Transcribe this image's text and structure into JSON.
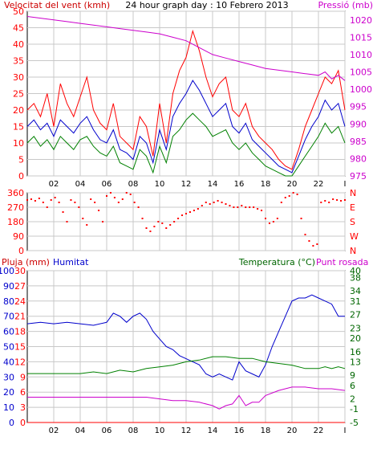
{
  "colors": {
    "frame": "#000000",
    "grid": "#c8c8c8",
    "red": "#ff0000",
    "blue": "#0000cc",
    "green": "#008000",
    "magenta": "#cc00cc",
    "dark_green": "#006600",
    "title_red": "#cc0000"
  },
  "chart_data": [
    {
      "type": "line",
      "title": "24 hour graph day : 10 Febrero 2013",
      "left_label": "Velocitat del vent (kmh)",
      "right_label": "Pressió (mb)",
      "x_ticks": [
        "02",
        "04",
        "06",
        "08",
        "10",
        "12",
        "14",
        "16",
        "18",
        "20",
        "22",
        "I"
      ],
      "y_left": [
        0,
        5,
        10,
        15,
        20,
        25,
        30,
        35,
        40,
        45,
        50
      ],
      "y_right": [
        975,
        980,
        985,
        990,
        995,
        1000,
        1005,
        1010,
        1015,
        1020
      ],
      "ylim_left": [
        0,
        50
      ],
      "ylim_right": [
        975,
        1022.5
      ],
      "grid": true,
      "series": [
        {
          "name": "gust",
          "color": "#ff0000",
          "x": [
            0,
            0.5,
            1,
            1.5,
            2,
            2.5,
            3,
            3.5,
            4,
            4.5,
            5,
            5.5,
            6,
            6.5,
            7,
            7.5,
            8,
            8.5,
            9,
            9.5,
            10,
            10.5,
            11,
            11.5,
            12,
            12.5,
            13,
            13.5,
            14,
            14.5,
            15,
            15.5,
            16,
            16.5,
            17,
            17.5,
            18,
            18.5,
            19,
            19.5,
            20,
            20.5,
            21,
            21.5,
            22,
            22.5,
            23,
            23.5,
            24
          ],
          "y": [
            20,
            22,
            18,
            25,
            15,
            28,
            22,
            18,
            24,
            30,
            20,
            16,
            14,
            22,
            12,
            10,
            8,
            18,
            15,
            6,
            22,
            10,
            25,
            32,
            36,
            44,
            38,
            30,
            24,
            28,
            30,
            20,
            18,
            22,
            15,
            12,
            10,
            8,
            5,
            3,
            2,
            8,
            15,
            20,
            25,
            30,
            28,
            32,
            20
          ]
        },
        {
          "name": "wind",
          "color": "#0000cc",
          "x": [
            0,
            0.5,
            1,
            1.5,
            2,
            2.5,
            3,
            3.5,
            4,
            4.5,
            5,
            5.5,
            6,
            6.5,
            7,
            7.5,
            8,
            8.5,
            9,
            9.5,
            10,
            10.5,
            11,
            11.5,
            12,
            12.5,
            13,
            13.5,
            14,
            14.5,
            15,
            15.5,
            16,
            16.5,
            17,
            17.5,
            18,
            18.5,
            19,
            19.5,
            20,
            20.5,
            21,
            21.5,
            22,
            22.5,
            23,
            23.5,
            24
          ],
          "y": [
            15,
            17,
            14,
            16,
            12,
            17,
            15,
            13,
            16,
            18,
            14,
            11,
            10,
            14,
            8,
            7,
            5,
            12,
            10,
            4,
            14,
            8,
            18,
            22,
            25,
            29,
            26,
            22,
            18,
            20,
            22,
            15,
            13,
            16,
            11,
            9,
            7,
            5,
            3,
            2,
            1,
            6,
            11,
            15,
            18,
            23,
            20,
            22,
            15
          ]
        },
        {
          "name": "wind_avg",
          "color": "#008000",
          "x": [
            0,
            0.5,
            1,
            1.5,
            2,
            2.5,
            3,
            3.5,
            4,
            4.5,
            5,
            5.5,
            6,
            6.5,
            7,
            7.5,
            8,
            8.5,
            9,
            9.5,
            10,
            10.5,
            11,
            11.5,
            12,
            12.5,
            13,
            13.5,
            14,
            14.5,
            15,
            15.5,
            16,
            16.5,
            17,
            17.5,
            18,
            18.5,
            19,
            19.5,
            20,
            20.5,
            21,
            21.5,
            22,
            22.5,
            23,
            23.5,
            24
          ],
          "y": [
            10,
            12,
            9,
            11,
            8,
            12,
            10,
            8,
            11,
            12,
            9,
            7,
            6,
            9,
            4,
            3,
            2,
            8,
            6,
            1,
            9,
            4,
            12,
            14,
            17,
            19,
            17,
            15,
            12,
            13,
            14,
            10,
            8,
            10,
            7,
            5,
            3,
            2,
            1,
            0,
            0,
            3,
            6,
            9,
            12,
            16,
            13,
            15,
            10
          ]
        },
        {
          "name": "pressure",
          "color": "#cc00cc",
          "axis": "right",
          "x": [
            0,
            1,
            2,
            3,
            4,
            5,
            6,
            7,
            8,
            9,
            10,
            11,
            12,
            13,
            14,
            15,
            16,
            17,
            18,
            19,
            20,
            21,
            22,
            22.5,
            23,
            23.5,
            24
          ],
          "y": [
            1021,
            1020.5,
            1020,
            1019.5,
            1019,
            1018.5,
            1018,
            1017.5,
            1017,
            1016.5,
            1016,
            1015,
            1014,
            1012,
            1010,
            1009,
            1008,
            1007,
            1006,
            1005.5,
            1005,
            1004.5,
            1004,
            1005,
            1003,
            1004,
            1002.5
          ]
        }
      ]
    },
    {
      "type": "scatter",
      "y_left": [
        0,
        90,
        180,
        270,
        360
      ],
      "y_right": [
        "N",
        "W",
        "S",
        "E",
        "N"
      ],
      "ylim": [
        0,
        360
      ],
      "x_ticks": [],
      "grid": true,
      "points": [
        [
          0,
          315
        ],
        [
          0.3,
          320
        ],
        [
          0.6,
          310
        ],
        [
          0.9,
          325
        ],
        [
          1.2,
          300
        ],
        [
          1.5,
          270
        ],
        [
          1.8,
          315
        ],
        [
          2.1,
          330
        ],
        [
          2.4,
          300
        ],
        [
          2.7,
          240
        ],
        [
          3.0,
          180
        ],
        [
          3.3,
          315
        ],
        [
          3.6,
          300
        ],
        [
          3.9,
          270
        ],
        [
          4.2,
          200
        ],
        [
          4.5,
          160
        ],
        [
          4.8,
          320
        ],
        [
          5.1,
          300
        ],
        [
          5.4,
          250
        ],
        [
          5.7,
          180
        ],
        [
          6.0,
          340
        ],
        [
          6.3,
          360
        ],
        [
          6.6,
          330
        ],
        [
          6.9,
          300
        ],
        [
          7.2,
          320
        ],
        [
          7.5,
          360
        ],
        [
          7.8,
          350
        ],
        [
          8.1,
          300
        ],
        [
          8.4,
          270
        ],
        [
          8.7,
          200
        ],
        [
          9.0,
          140
        ],
        [
          9.3,
          120
        ],
        [
          9.6,
          150
        ],
        [
          9.9,
          180
        ],
        [
          10.2,
          170
        ],
        [
          10.5,
          140
        ],
        [
          10.8,
          160
        ],
        [
          11.1,
          180
        ],
        [
          11.4,
          200
        ],
        [
          11.7,
          220
        ],
        [
          12.0,
          230
        ],
        [
          12.3,
          240
        ],
        [
          12.6,
          250
        ],
        [
          12.9,
          260
        ],
        [
          13.2,
          280
        ],
        [
          13.5,
          300
        ],
        [
          13.8,
          290
        ],
        [
          14.1,
          300
        ],
        [
          14.4,
          310
        ],
        [
          14.7,
          300
        ],
        [
          15.0,
          290
        ],
        [
          15.3,
          280
        ],
        [
          15.6,
          270
        ],
        [
          15.9,
          270
        ],
        [
          16.2,
          280
        ],
        [
          16.5,
          270
        ],
        [
          16.8,
          270
        ],
        [
          17.1,
          270
        ],
        [
          17.4,
          260
        ],
        [
          17.7,
          250
        ],
        [
          18.0,
          200
        ],
        [
          18.3,
          170
        ],
        [
          18.6,
          180
        ],
        [
          18.9,
          200
        ],
        [
          19.2,
          300
        ],
        [
          19.5,
          330
        ],
        [
          19.8,
          340
        ],
        [
          20.1,
          360
        ],
        [
          20.4,
          350
        ],
        [
          20.7,
          200
        ],
        [
          21.0,
          100
        ],
        [
          21.3,
          60
        ],
        [
          21.6,
          30
        ],
        [
          21.9,
          40
        ],
        [
          22.2,
          300
        ],
        [
          22.5,
          310
        ],
        [
          22.8,
          300
        ],
        [
          23.1,
          320
        ],
        [
          23.4,
          315
        ],
        [
          23.7,
          310
        ],
        [
          24,
          315
        ]
      ]
    },
    {
      "type": "line",
      "left_label": "Pluja (mm)",
      "left2_label": "Humitat",
      "right_label": "Temperatura (°C)",
      "right2_label": "Punt rosada",
      "x_ticks": [
        "02",
        "04",
        "06",
        "08",
        "10",
        "12",
        "14",
        "16",
        "18",
        "20",
        "22",
        "I"
      ],
      "y_left_rain": [
        0,
        3,
        6,
        9,
        12,
        15,
        18,
        21,
        24,
        27,
        30
      ],
      "y_left_hum": [
        0,
        10,
        20,
        30,
        40,
        50,
        60,
        70,
        80,
        90,
        100
      ],
      "y_right": [
        -5,
        -1,
        2,
        6,
        9,
        13,
        16,
        20,
        23,
        27,
        31,
        34,
        38,
        40
      ],
      "ylim_right": [
        -5,
        40
      ],
      "grid": true,
      "series": [
        {
          "name": "humidity",
          "color": "#0000cc",
          "axis": "humidity",
          "x": [
            0,
            1,
            2,
            3,
            4,
            5,
            6,
            6.5,
            7,
            7.5,
            8,
            8.5,
            9,
            9.5,
            10,
            10.5,
            11,
            11.5,
            12,
            12.5,
            13,
            13.5,
            14,
            14.5,
            15,
            15.5,
            16,
            16.5,
            17,
            17.5,
            18,
            18.5,
            19,
            19.5,
            20,
            20.5,
            21,
            21.5,
            22,
            22.5,
            23,
            23.5,
            24
          ],
          "y": [
            65,
            66,
            65,
            66,
            65,
            64,
            66,
            72,
            70,
            66,
            70,
            72,
            68,
            60,
            55,
            50,
            48,
            44,
            42,
            40,
            38,
            32,
            30,
            32,
            30,
            28,
            40,
            34,
            32,
            30,
            38,
            50,
            60,
            70,
            80,
            82,
            82,
            84,
            82,
            80,
            78,
            70,
            70
          ]
        },
        {
          "name": "temperature",
          "color": "#008000",
          "axis": "right",
          "x": [
            0,
            1,
            2,
            3,
            4,
            5,
            6,
            7,
            8,
            9,
            10,
            11,
            12,
            13,
            14,
            15,
            16,
            17,
            18,
            19,
            20,
            21,
            22,
            22.5,
            23,
            23.5,
            24
          ],
          "y": [
            9.5,
            9.5,
            9.5,
            9.5,
            9.5,
            10,
            9.5,
            10.5,
            10,
            11,
            11.5,
            12,
            13,
            13.5,
            14.5,
            14.5,
            14,
            14,
            13,
            12.5,
            12,
            11,
            11,
            11.5,
            11,
            11.5,
            11
          ]
        },
        {
          "name": "dew_point",
          "color": "#cc00cc",
          "axis": "right",
          "x": [
            0,
            1,
            2,
            3,
            4,
            5,
            6,
            7,
            8,
            9,
            10,
            11,
            12,
            13,
            14,
            14.5,
            15,
            15.5,
            16,
            16.5,
            17,
            17.5,
            18,
            19,
            20,
            21,
            22,
            22.5,
            23,
            24
          ],
          "y": [
            2.5,
            2.5,
            2.5,
            2.5,
            2.5,
            2.5,
            2.5,
            2.5,
            2.5,
            2.5,
            2,
            1.5,
            1.5,
            1,
            0,
            -1,
            0,
            0.5,
            3,
            0,
            1,
            1,
            3,
            4.5,
            5.5,
            5.5,
            5,
            5,
            5,
            4.5
          ]
        },
        {
          "name": "rain",
          "color": "#ff0000",
          "axis": "rain",
          "x": [
            0,
            24
          ],
          "y": [
            0,
            0
          ]
        }
      ]
    }
  ]
}
